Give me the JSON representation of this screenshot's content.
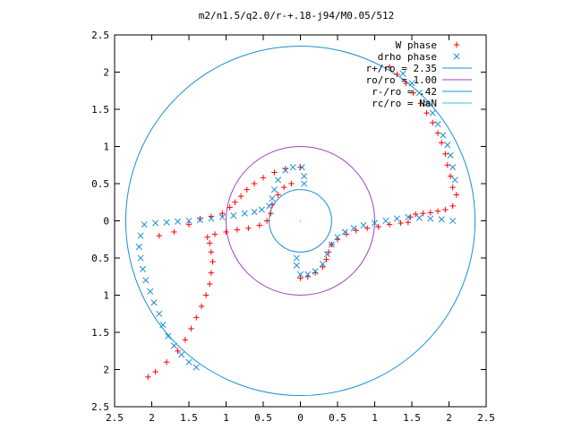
{
  "chart_data": {
    "type": "scatter",
    "title": "m2/n1.5/q2.0/r-+.18-j94/M0.05/512",
    "xlabel": "",
    "ylabel": "",
    "xlim": [
      -2.5,
      2.5
    ],
    "ylim": [
      -2.5,
      2.5
    ],
    "x_ticks": [
      "2.5",
      "2",
      "1.5",
      "1",
      "0.5",
      "0",
      "0.5",
      "1",
      "1.5",
      "2",
      "2.5"
    ],
    "y_ticks": [
      "2.5",
      "2",
      "1.5",
      "1",
      "0.5",
      "0",
      "0.5",
      "1",
      "1.5",
      "2",
      "2.5"
    ],
    "grid": false,
    "legend_position": "top-right",
    "circles": [
      {
        "name": "r+/ro = 2.35",
        "radius": 2.35,
        "color": "#1a8fd6"
      },
      {
        "name": "ro/ro = 1.00",
        "radius": 1.0,
        "color": "#a040c0"
      },
      {
        "name": "r-/ro = .42",
        "radius": 0.42,
        "color": "#1a8fd6"
      },
      {
        "name": "rc/ro = NaN",
        "radius": 0,
        "color": "#40c0e0"
      }
    ],
    "series": [
      {
        "name": "W phase",
        "marker": "plus",
        "color": "#ff0000",
        "points": [
          [
            2.05,
            0.45
          ],
          [
            2.02,
            0.6
          ],
          [
            1.98,
            0.75
          ],
          [
            1.95,
            0.9
          ],
          [
            1.9,
            1.05
          ],
          [
            1.85,
            1.18
          ],
          [
            1.78,
            1.32
          ],
          [
            1.7,
            1.45
          ],
          [
            1.62,
            1.58
          ],
          [
            1.52,
            1.72
          ],
          [
            1.42,
            1.85
          ],
          [
            1.3,
            1.97
          ],
          [
            1.2,
            2.07
          ],
          [
            2.1,
            0.35
          ],
          [
            2.05,
            0.2
          ],
          [
            1.95,
            0.15
          ],
          [
            1.85,
            0.13
          ],
          [
            1.75,
            0.11
          ],
          [
            1.65,
            0.1
          ],
          [
            1.55,
            0.09
          ],
          [
            1.48,
            0.05
          ],
          [
            1.45,
            -0.02
          ],
          [
            1.35,
            -0.03
          ],
          [
            1.2,
            -0.05
          ],
          [
            1.05,
            -0.08
          ],
          [
            0.9,
            -0.1
          ],
          [
            0.75,
            -0.13
          ],
          [
            0.62,
            -0.18
          ],
          [
            0.5,
            -0.25
          ],
          [
            0.42,
            -0.32
          ],
          [
            0.38,
            -0.42
          ],
          [
            0.35,
            -0.52
          ],
          [
            0.3,
            -0.62
          ],
          [
            0.2,
            -0.7
          ],
          [
            0.1,
            -0.75
          ],
          [
            0.0,
            -0.77
          ],
          [
            -2.05,
            -2.1
          ],
          [
            -1.95,
            -2.03
          ],
          [
            -1.8,
            -1.9
          ],
          [
            -1.65,
            -1.75
          ],
          [
            -1.55,
            -1.6
          ],
          [
            -1.47,
            -1.45
          ],
          [
            -1.4,
            -1.3
          ],
          [
            -1.33,
            -1.15
          ],
          [
            -1.27,
            -1.0
          ],
          [
            -1.22,
            -0.85
          ],
          [
            -1.2,
            -0.7
          ],
          [
            -1.18,
            -0.55
          ],
          [
            -1.2,
            -0.42
          ],
          [
            -1.22,
            -0.3
          ],
          [
            -1.25,
            -0.22
          ],
          [
            -1.15,
            -0.18
          ],
          [
            -1.0,
            -0.15
          ],
          [
            -0.85,
            -0.12
          ],
          [
            -0.7,
            -0.1
          ],
          [
            -0.55,
            -0.06
          ],
          [
            -0.45,
            0.0
          ],
          [
            -0.4,
            0.1
          ],
          [
            -0.38,
            0.22
          ],
          [
            -0.3,
            0.35
          ],
          [
            -0.22,
            0.45
          ],
          [
            -0.12,
            0.5
          ],
          [
            0.0,
            0.72
          ],
          [
            -0.2,
            0.7
          ],
          [
            -0.35,
            0.65
          ],
          [
            -0.5,
            0.58
          ],
          [
            -0.62,
            0.5
          ],
          [
            -0.72,
            0.42
          ],
          [
            -0.8,
            0.33
          ],
          [
            -0.88,
            0.25
          ],
          [
            -0.95,
            0.18
          ],
          [
            -1.05,
            0.1
          ],
          [
            -1.2,
            0.06
          ],
          [
            -1.35,
            0.03
          ],
          [
            -1.5,
            -0.05
          ],
          [
            -1.7,
            -0.15
          ],
          [
            -1.9,
            -0.2
          ]
        ]
      },
      {
        "name": "drho phase",
        "marker": "cross",
        "color": "#1a8fd6",
        "points": [
          [
            2.08,
            0.55
          ],
          [
            2.05,
            0.72
          ],
          [
            2.02,
            0.88
          ],
          [
            1.98,
            1.02
          ],
          [
            1.92,
            1.15
          ],
          [
            1.85,
            1.3
          ],
          [
            1.78,
            1.45
          ],
          [
            1.7,
            1.58
          ],
          [
            1.6,
            1.72
          ],
          [
            1.5,
            1.85
          ],
          [
            1.38,
            1.98
          ],
          [
            2.05,
            0.0
          ],
          [
            1.9,
            0.02
          ],
          [
            1.75,
            0.03
          ],
          [
            1.6,
            0.04
          ],
          [
            1.45,
            0.05
          ],
          [
            1.3,
            0.03
          ],
          [
            1.15,
            0.0
          ],
          [
            1.0,
            -0.03
          ],
          [
            0.85,
            -0.06
          ],
          [
            0.72,
            -0.1
          ],
          [
            0.6,
            -0.15
          ],
          [
            0.5,
            -0.22
          ],
          [
            0.42,
            -0.32
          ],
          [
            0.36,
            -0.45
          ],
          [
            0.3,
            -0.58
          ],
          [
            0.2,
            -0.68
          ],
          [
            0.1,
            -0.72
          ],
          [
            0.0,
            -0.72
          ],
          [
            -0.05,
            -0.6
          ],
          [
            -0.05,
            -0.5
          ],
          [
            -2.15,
            -0.2
          ],
          [
            -2.17,
            -0.35
          ],
          [
            -2.15,
            -0.5
          ],
          [
            -2.12,
            -0.65
          ],
          [
            -2.08,
            -0.8
          ],
          [
            -2.02,
            -0.95
          ],
          [
            -1.97,
            -1.1
          ],
          [
            -1.9,
            -1.25
          ],
          [
            -1.85,
            -1.4
          ],
          [
            -1.78,
            -1.55
          ],
          [
            -1.7,
            -1.68
          ],
          [
            -1.6,
            -1.8
          ],
          [
            -1.5,
            -1.9
          ],
          [
            -1.4,
            -1.97
          ],
          [
            -2.1,
            -0.05
          ],
          [
            -1.95,
            -0.03
          ],
          [
            -1.8,
            -0.02
          ],
          [
            -1.65,
            -0.01
          ],
          [
            -1.5,
            0.0
          ],
          [
            -1.35,
            0.01
          ],
          [
            -1.2,
            0.03
          ],
          [
            -1.05,
            0.05
          ],
          [
            -0.9,
            0.07
          ],
          [
            -0.75,
            0.1
          ],
          [
            -0.62,
            0.12
          ],
          [
            -0.52,
            0.15
          ],
          [
            -0.42,
            0.2
          ],
          [
            -0.38,
            0.3
          ],
          [
            -0.35,
            0.42
          ],
          [
            -0.3,
            0.55
          ],
          [
            -0.2,
            0.68
          ],
          [
            -0.1,
            0.72
          ],
          [
            0.02,
            0.72
          ],
          [
            0.05,
            0.6
          ],
          [
            0.05,
            0.5
          ]
        ]
      }
    ]
  }
}
